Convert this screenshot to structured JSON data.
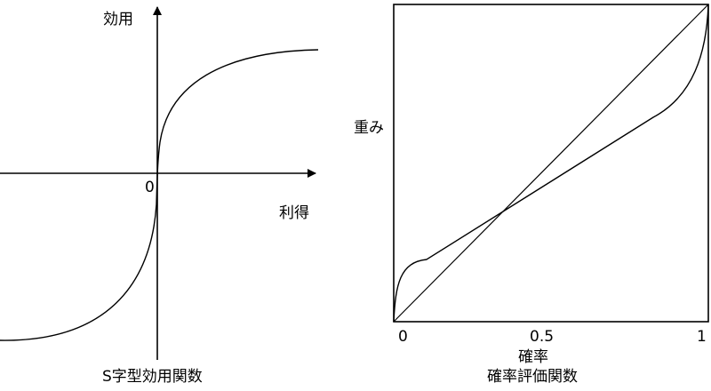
{
  "left_panel": {
    "y_axis_label": "効用",
    "x_axis_label": "利得",
    "origin_label": "0",
    "caption": "S字型効用関数"
  },
  "right_panel": {
    "y_axis_label": "重み",
    "x_axis_label": "確率",
    "x_ticks": [
      "0",
      "0.5",
      "1"
    ],
    "caption": "確率評価関数"
  }
}
